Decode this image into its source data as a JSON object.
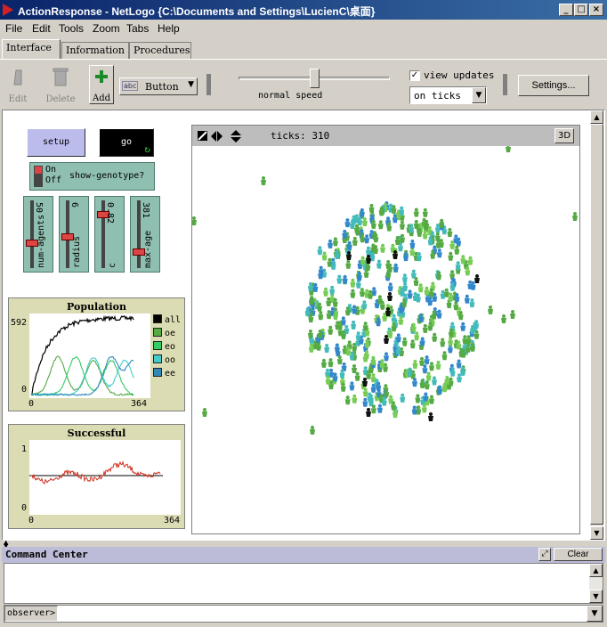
{
  "window": {
    "title": "ActionResponse - NetLogo {C:\\Documents and Settings\\LucienC\\桌面}"
  },
  "menu": [
    "File",
    "Edit",
    "Tools",
    "Zoom",
    "Tabs",
    "Help"
  ],
  "tabs": [
    "Interface",
    "Information",
    "Procedures"
  ],
  "toolbar": {
    "edit": "Edit",
    "delete": "Delete",
    "add": "Add",
    "widget_type": "Button",
    "widget_type_icon": "abc",
    "speed_label": "normal speed",
    "speed": 0.5,
    "view_updates_label": "view updates",
    "view_updates_checked": true,
    "update_mode": "on ticks",
    "settings": "Settings..."
  },
  "widgets": {
    "setup": "setup",
    "go": "go",
    "switch": {
      "on": "On",
      "off": "Off",
      "label": "show-genotype?"
    },
    "sliders": [
      {
        "name": "num-agents",
        "value": "50",
        "fraction": 0.35
      },
      {
        "name": "radius",
        "value": "6",
        "fraction": 0.45
      },
      {
        "name": "c",
        "value": "0.82",
        "fraction": 0.82
      },
      {
        "name": "max-age",
        "value": "381",
        "fraction": 0.2
      }
    ]
  },
  "view": {
    "ticks_label": "ticks: 310",
    "three_d": "3D",
    "turtle_colors": {
      "green": "#55aa44",
      "light_green": "#77cc55",
      "cyan": "#44bbbb",
      "blue": "#3388cc",
      "black": "#111111"
    }
  },
  "plots": {
    "population": {
      "title": "Population",
      "ymax": "592",
      "ymin": "0",
      "xmin": "0",
      "xmax": "364",
      "legend": [
        {
          "label": "all",
          "color": "#000000"
        },
        {
          "label": "oe",
          "color": "#55aa44"
        },
        {
          "label": "eo",
          "color": "#33cc66"
        },
        {
          "label": "oo",
          "color": "#44cccc"
        },
        {
          "label": "ee",
          "color": "#3388bb"
        }
      ]
    },
    "successful": {
      "title": "Successful",
      "ymax": "1",
      "ymin": "0",
      "xmin": "0",
      "xmax": "364"
    }
  },
  "command_center": {
    "title": "Command Center",
    "clear": "Clear",
    "prompt": "observer>"
  }
}
